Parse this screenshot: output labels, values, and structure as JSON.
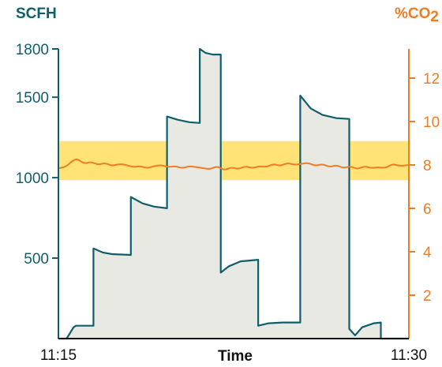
{
  "chart_data": {
    "type": "line",
    "title": "",
    "xlabel": "Time",
    "x_tick_labels": [
      "11:15",
      "11:30"
    ],
    "xlim": [
      0,
      15
    ],
    "y_left": {
      "label": "SCFH",
      "ticks": [
        500,
        1000,
        1500,
        1800
      ],
      "ylim": [
        0,
        1800
      ]
    },
    "y_right": {
      "label": "%CO",
      "label_subscript": "2",
      "ticks": [
        2,
        4,
        6,
        8,
        10,
        12
      ],
      "ylim": [
        0,
        14
      ]
    },
    "target_band": {
      "axis": "right",
      "from": 7.3,
      "to": 9.1,
      "color": "#ffd94a"
    },
    "series": [
      {
        "axis": "left",
        "style": "area",
        "color": "#0f5f6b",
        "fill": "#e8e9e3",
        "points": [
          [
            0,
            0
          ],
          [
            0.35,
            0
          ],
          [
            0.65,
            70
          ],
          [
            0.75,
            80
          ],
          [
            1.5,
            80
          ],
          [
            1.5,
            560
          ],
          [
            1.9,
            535
          ],
          [
            2.3,
            525
          ],
          [
            3.1,
            520
          ],
          [
            3.1,
            880
          ],
          [
            3.6,
            840
          ],
          [
            4.1,
            820
          ],
          [
            4.65,
            810
          ],
          [
            4.65,
            1380
          ],
          [
            5.1,
            1360
          ],
          [
            5.6,
            1345
          ],
          [
            6.05,
            1340
          ],
          [
            6.05,
            1800
          ],
          [
            6.3,
            1775
          ],
          [
            6.6,
            1765
          ],
          [
            6.95,
            1765
          ],
          [
            6.95,
            410
          ],
          [
            7.3,
            450
          ],
          [
            7.8,
            480
          ],
          [
            8.55,
            490
          ],
          [
            8.55,
            80
          ],
          [
            9,
            95
          ],
          [
            9.6,
            100
          ],
          [
            10.35,
            100
          ],
          [
            10.35,
            1510
          ],
          [
            10.8,
            1430
          ],
          [
            11.3,
            1390
          ],
          [
            11.9,
            1370
          ],
          [
            12.45,
            1365
          ],
          [
            12.45,
            60
          ],
          [
            12.7,
            20
          ],
          [
            13,
            70
          ],
          [
            13.5,
            95
          ],
          [
            13.8,
            100
          ],
          [
            13.8,
            0
          ],
          [
            15,
            0
          ]
        ]
      },
      {
        "axis": "right",
        "style": "line",
        "color": "#f07c23",
        "points": [
          [
            0,
            7.85
          ],
          [
            0.3,
            7.9
          ],
          [
            0.55,
            8.15
          ],
          [
            0.8,
            8.3
          ],
          [
            1.1,
            8.05
          ],
          [
            1.4,
            8.15
          ],
          [
            1.7,
            8.0
          ],
          [
            2.0,
            8.1
          ],
          [
            2.3,
            7.95
          ],
          [
            2.6,
            8.05
          ],
          [
            2.9,
            8.0
          ],
          [
            3.2,
            7.9
          ],
          [
            3.5,
            7.95
          ],
          [
            3.8,
            7.85
          ],
          [
            4.1,
            7.95
          ],
          [
            4.4,
            8.0
          ],
          [
            4.7,
            7.9
          ],
          [
            5.0,
            7.95
          ],
          [
            5.3,
            7.85
          ],
          [
            5.6,
            7.95
          ],
          [
            5.9,
            7.9
          ],
          [
            6.2,
            7.85
          ],
          [
            6.5,
            7.8
          ],
          [
            6.8,
            7.95
          ],
          [
            7.1,
            7.75
          ],
          [
            7.4,
            7.9
          ],
          [
            7.7,
            7.8
          ],
          [
            8.0,
            7.95
          ],
          [
            8.3,
            7.85
          ],
          [
            8.6,
            7.95
          ],
          [
            8.9,
            7.9
          ],
          [
            9.2,
            8.05
          ],
          [
            9.5,
            7.95
          ],
          [
            9.8,
            8.1
          ],
          [
            10.1,
            8.0
          ],
          [
            10.4,
            8.05
          ],
          [
            10.7,
            8.1
          ],
          [
            11.0,
            7.95
          ],
          [
            11.3,
            8.05
          ],
          [
            11.6,
            7.9
          ],
          [
            11.9,
            8.0
          ],
          [
            12.2,
            7.85
          ],
          [
            12.5,
            7.95
          ],
          [
            12.8,
            7.8
          ],
          [
            13.1,
            7.95
          ],
          [
            13.4,
            7.85
          ],
          [
            13.7,
            7.9
          ],
          [
            14.0,
            7.85
          ],
          [
            14.3,
            8.05
          ],
          [
            14.6,
            7.95
          ],
          [
            15,
            8.0
          ]
        ]
      }
    ]
  }
}
